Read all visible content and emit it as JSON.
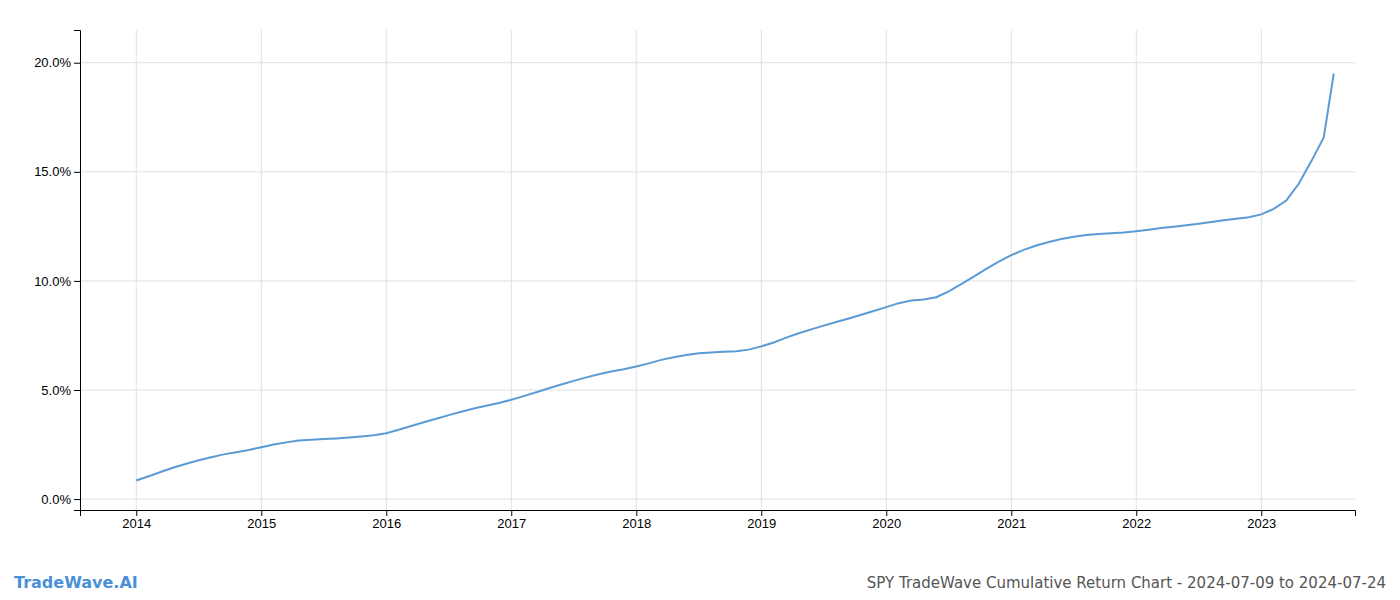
{
  "chart_data": {
    "type": "line",
    "title": "SPY TradeWave Cumulative Return Chart - 2024-07-09 to 2024-07-24",
    "annotations": [
      "TradeWave.AI"
    ],
    "color": "#5b9bd5",
    "grid": true,
    "x": [
      2014.0,
      2014.1,
      2014.2,
      2014.3,
      2014.4,
      2014.5,
      2014.6,
      2014.7,
      2014.8,
      2014.9,
      2015.0,
      2015.1,
      2015.2,
      2015.3,
      2015.4,
      2015.5,
      2015.6,
      2015.7,
      2015.8,
      2015.9,
      2016.0,
      2016.1,
      2016.2,
      2016.3,
      2016.4,
      2016.5,
      2016.6,
      2016.7,
      2016.8,
      2016.9,
      2017.0,
      2017.1,
      2017.2,
      2017.3,
      2017.4,
      2017.5,
      2017.6,
      2017.7,
      2017.8,
      2017.9,
      2018.0,
      2018.1,
      2018.2,
      2018.3,
      2018.4,
      2018.5,
      2018.6,
      2018.7,
      2018.8,
      2018.9,
      2019.0,
      2019.1,
      2019.2,
      2019.3,
      2019.4,
      2019.5,
      2019.6,
      2019.7,
      2019.8,
      2019.9,
      2020.0,
      2020.1,
      2020.2,
      2020.3,
      2020.4,
      2020.5,
      2020.6,
      2020.7,
      2020.8,
      2020.9,
      2021.0,
      2021.1,
      2021.2,
      2021.3,
      2021.4,
      2021.5,
      2021.6,
      2021.7,
      2021.8,
      2021.9,
      2022.0,
      2022.1,
      2022.2,
      2022.3,
      2022.4,
      2022.5,
      2022.6,
      2022.7,
      2022.8,
      2022.9,
      2023.0,
      2023.1,
      2023.2,
      2023.3,
      2023.4,
      2023.5,
      2023.58
    ],
    "values": [
      0.0085,
      0.0105,
      0.0125,
      0.0145,
      0.0162,
      0.0178,
      0.0192,
      0.0205,
      0.0215,
      0.0225,
      0.0238,
      0.025,
      0.026,
      0.0268,
      0.0272,
      0.0275,
      0.0278,
      0.0282,
      0.0287,
      0.0293,
      0.0302,
      0.0318,
      0.0335,
      0.0352,
      0.0368,
      0.0385,
      0.04,
      0.0415,
      0.0428,
      0.044,
      0.0455,
      0.0472,
      0.049,
      0.0508,
      0.0525,
      0.0542,
      0.0558,
      0.0572,
      0.0585,
      0.0595,
      0.0608,
      0.0622,
      0.0638,
      0.065,
      0.066,
      0.0668,
      0.0672,
      0.0675,
      0.0678,
      0.0685,
      0.07,
      0.0718,
      0.074,
      0.076,
      0.0778,
      0.0795,
      0.0812,
      0.0828,
      0.0845,
      0.0862,
      0.088,
      0.0898,
      0.091,
      0.0915,
      0.0925,
      0.0952,
      0.0985,
      0.102,
      0.1055,
      0.1088,
      0.1118,
      0.1142,
      0.1162,
      0.1178,
      0.1192,
      0.1202,
      0.121,
      0.1215,
      0.1218,
      0.1222,
      0.1228,
      0.1235,
      0.1242,
      0.1248,
      0.1255,
      0.1262,
      0.127,
      0.1278,
      0.1285,
      0.1292,
      0.1305,
      0.133,
      0.1368,
      0.1445,
      0.1548,
      0.1658,
      0.195
    ],
    "xlim": [
      2013.55,
      2023.75
    ],
    "xticks": [
      2014,
      2015,
      2016,
      2017,
      2018,
      2019,
      2020,
      2021,
      2022,
      2023
    ],
    "ylim": [
      -0.005,
      0.215
    ],
    "yticks": [
      {
        "value": 0.0,
        "label": "0.0%"
      },
      {
        "value": 0.05,
        "label": "5.0%"
      },
      {
        "value": 0.1,
        "label": "10.0%"
      },
      {
        "value": 0.15,
        "label": "15.0%"
      },
      {
        "value": 0.2,
        "label": "20.0%"
      }
    ]
  }
}
